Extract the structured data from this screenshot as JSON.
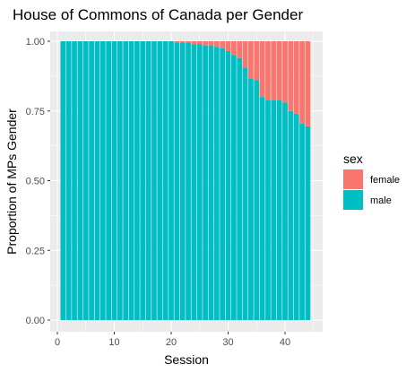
{
  "chart_data": {
    "type": "bar",
    "stacked": "proportion",
    "title": "House of Commons of Canada per Gender",
    "xlabel": "Session",
    "ylabel": "Proportion of MPs Gender",
    "xlim": [
      0,
      46
    ],
    "ylim": [
      0,
      1
    ],
    "x_ticks": [
      0,
      10,
      20,
      30,
      40
    ],
    "y_ticks": [
      0,
      0.25,
      0.5,
      0.75,
      1
    ],
    "y_tick_labels": [
      "0.00",
      "0.25",
      "0.50",
      "0.75",
      "1.00"
    ],
    "grid": true,
    "legend": {
      "title": "sex",
      "position": "right",
      "entries": [
        {
          "name": "female",
          "color": "#F8766D"
        },
        {
          "name": "male",
          "color": "#00BFC4"
        }
      ]
    },
    "x": [
      1,
      2,
      3,
      4,
      5,
      6,
      7,
      8,
      9,
      10,
      11,
      12,
      13,
      14,
      15,
      16,
      17,
      18,
      19,
      20,
      21,
      22,
      23,
      24,
      25,
      26,
      27,
      28,
      29,
      30,
      31,
      32,
      33,
      34,
      35,
      36,
      37,
      38,
      39,
      40,
      41,
      42,
      43,
      44
    ],
    "series": [
      {
        "name": "male",
        "color": "#00BFC4",
        "values": [
          1,
          1,
          1,
          1,
          1,
          1,
          1,
          1,
          1,
          1,
          1,
          1,
          1,
          1,
          1,
          1,
          1,
          1,
          1,
          1,
          0.995,
          0.995,
          0.995,
          0.99,
          0.99,
          0.985,
          0.985,
          0.98,
          0.975,
          0.965,
          0.95,
          0.94,
          0.905,
          0.865,
          0.86,
          0.8,
          0.79,
          0.79,
          0.79,
          0.78,
          0.75,
          0.74,
          0.705,
          0.695
        ]
      },
      {
        "name": "female",
        "color": "#F8766D",
        "values": [
          0,
          0,
          0,
          0,
          0,
          0,
          0,
          0,
          0,
          0,
          0,
          0,
          0,
          0,
          0,
          0,
          0,
          0,
          0,
          0,
          0.005,
          0.005,
          0.005,
          0.01,
          0.01,
          0.015,
          0.015,
          0.02,
          0.025,
          0.035,
          0.05,
          0.06,
          0.095,
          0.135,
          0.14,
          0.2,
          0.21,
          0.21,
          0.21,
          0.22,
          0.25,
          0.26,
          0.295,
          0.305
        ]
      }
    ]
  }
}
